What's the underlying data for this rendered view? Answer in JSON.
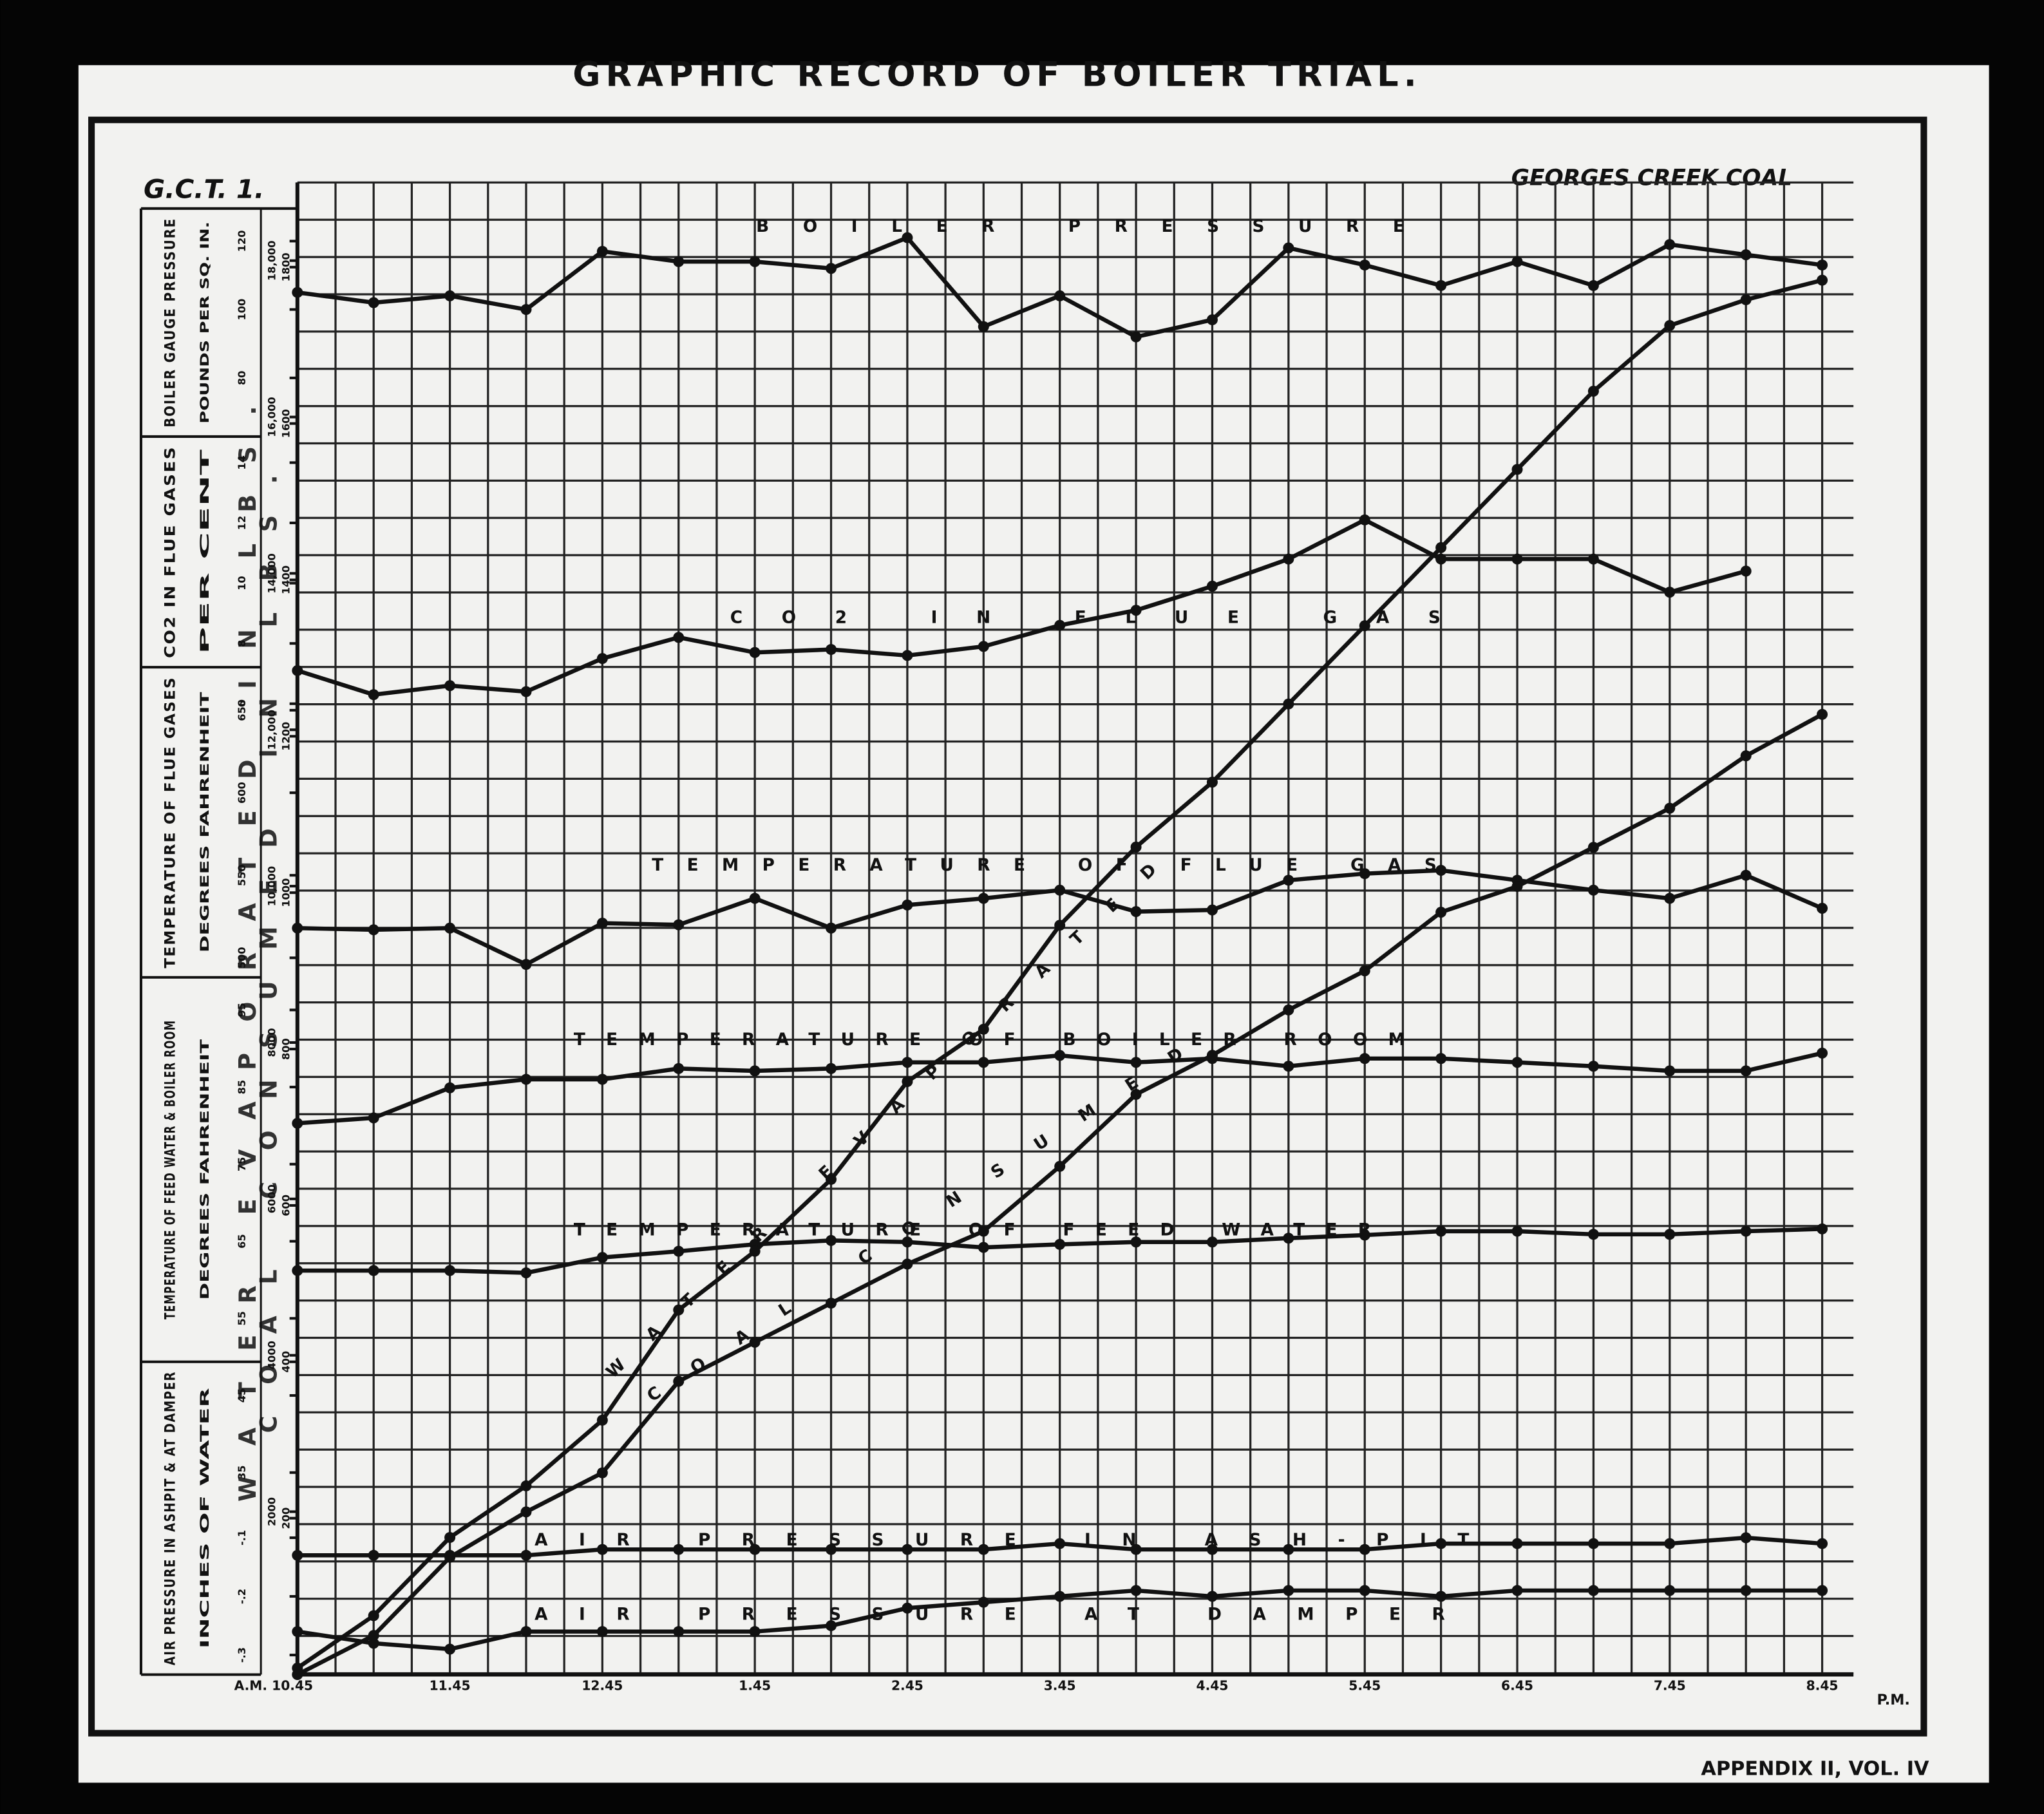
{
  "chart_data": {
    "type": "line",
    "title": "GRAPHIC RECORD OF BOILER TRIAL.",
    "chart_id": "G.C.T. 1.",
    "subtitle": "GEORGES CREEK COAL",
    "footer": "APPENDIX II, VOL. IV",
    "categories": [
      "A.M. 10.45",
      null,
      "11.45",
      null,
      "12.45",
      null,
      "1.45",
      null,
      "2.45",
      null,
      "3.45",
      null,
      "4.45",
      null,
      "5.45",
      null,
      "6.45",
      null,
      "7.45",
      null,
      "8.45"
    ],
    "x_end_label": "P.M.",
    "grid": true,
    "y_axes": [
      {
        "label": "BOILER GAUGE PRESSURE",
        "unit": "POUNDS PER SQ. IN.",
        "yticks": [
          80,
          100,
          120
        ]
      },
      {
        "label": "CO2 IN FLUE GASES",
        "unit": "PER CENT",
        "yticks": [
          6,
          8,
          10,
          12,
          14
        ]
      },
      {
        "label": "TEMPERATURE OF FLUE GASES",
        "unit": "DEGREES FAHRENHEIT",
        "yticks": [
          500,
          550,
          600,
          650
        ]
      },
      {
        "label": "TEMPERATURE OF FEED WATER & BOILER ROOM",
        "unit": "DEGREES FAHRENHEIT",
        "yticks": [
          35,
          45,
          55,
          65,
          75,
          85,
          95
        ]
      },
      {
        "label": "AIR PRESSURE IN ASHPIT & AT DAMPER",
        "unit": "INCHES OF WATER",
        "yticks": [
          {
            "value": -0.3,
            "label": "-.3"
          },
          {
            "value": -0.2,
            "label": "-.2"
          },
          {
            "value": -0.1,
            "label": "-.1"
          }
        ]
      },
      {
        "label": "WATER EVAPORATED IN LBS.",
        "yticks": [
          2000,
          4000,
          6000,
          8000,
          {
            "value": 10000,
            "label": "10,000"
          },
          {
            "value": 12000,
            "label": "12,000"
          },
          {
            "value": 14000,
            "label": "14,000"
          },
          {
            "value": 16000,
            "label": "16,000"
          },
          {
            "value": 18000,
            "label": "18,000"
          }
        ]
      },
      {
        "label": "COAL CONSUMED IN LBS.",
        "yticks": [
          200,
          400,
          600,
          800,
          1000,
          1200,
          1400,
          1600,
          1800
        ]
      }
    ],
    "series": [
      {
        "name": "BOILER PRESSURE",
        "color": "#111111",
        "axis": 0,
        "values": [
          105,
          102,
          104,
          100,
          117,
          114,
          114,
          112,
          121,
          95,
          104,
          92,
          97,
          118,
          113,
          107,
          114,
          107,
          119,
          116,
          113
        ]
      },
      {
        "name": "CO2 IN FLUE GAS",
        "color": "#111111",
        "axis": 1,
        "values": [
          7.1,
          6.3,
          6.6,
          6.4,
          7.5,
          8.2,
          7.7,
          7.8,
          7.6,
          7.9,
          8.6,
          9.1,
          9.9,
          10.8,
          12.1,
          10.8,
          10.8,
          10.8,
          9.7,
          10.4,
          null
        ]
      },
      {
        "name": "TEMPERATURE OF FLUE GAS",
        "color": "#111111",
        "axis": 2,
        "values": [
          518,
          517,
          518,
          496,
          521,
          520,
          536,
          518,
          532,
          536,
          541,
          528,
          529,
          547,
          551,
          553,
          547,
          541,
          536,
          550,
          530
        ]
      },
      {
        "name": "TEMPERATURE OF BOILER ROOM",
        "color": "#111111",
        "axis": 3,
        "values": [
          80.3,
          81.0,
          84.9,
          86.0,
          86.0,
          87.4,
          87.1,
          87.4,
          88.2,
          88.2,
          89.1,
          88.2,
          88.7,
          87.7,
          88.7,
          88.7,
          88.2,
          87.7,
          87.1,
          87.1,
          89.4
        ]
      },
      {
        "name": "TEMPERATURE OF FEED WATER",
        "color": "#111111",
        "axis": 3,
        "values": [
          61.2,
          61.2,
          61.2,
          60.9,
          62.9,
          63.7,
          64.6,
          65.1,
          64.9,
          64.2,
          64.6,
          64.9,
          64.9,
          65.4,
          65.8,
          66.3,
          66.3,
          65.9,
          65.9,
          66.3,
          66.6
        ]
      },
      {
        "name": "AIR PRESSURE IN ASH-PIT",
        "color": "#111111",
        "axis": 4,
        "values": [
          -0.13,
          -0.13,
          -0.13,
          -0.13,
          -0.12,
          -0.12,
          -0.12,
          -0.12,
          -0.12,
          -0.12,
          -0.11,
          -0.12,
          -0.12,
          -0.12,
          -0.12,
          -0.11,
          -0.11,
          -0.11,
          -0.11,
          -0.1,
          -0.11
        ]
      },
      {
        "name": "AIR PRESSURE AT DAMPER",
        "color": "#111111",
        "axis": 4,
        "values": [
          -0.26,
          -0.28,
          -0.29,
          -0.26,
          -0.26,
          -0.26,
          -0.26,
          -0.25,
          -0.22,
          -0.21,
          -0.2,
          -0.19,
          -0.2,
          -0.19,
          -0.19,
          -0.2,
          -0.19,
          -0.19,
          -0.19,
          -0.19,
          -0.19
        ]
      },
      {
        "name": "WATER EVAPORATED",
        "color": "#111111",
        "axis": 5,
        "values": [
          0,
          670,
          1670,
          2330,
          3170,
          4580,
          5330,
          6250,
          7500,
          8170,
          9500,
          10500,
          11330,
          12330,
          13330,
          14330,
          15330,
          16330,
          17170,
          17500,
          17750
        ]
      },
      {
        "name": "COAL CONSUMED",
        "color": "#111111",
        "axis": 6,
        "values": [
          0,
          50,
          150,
          208,
          258,
          375,
          425,
          475,
          525,
          567,
          650,
          742,
          792,
          850,
          900,
          975,
          1008,
          1058,
          1108,
          1175,
          1228
        ]
      }
    ]
  }
}
